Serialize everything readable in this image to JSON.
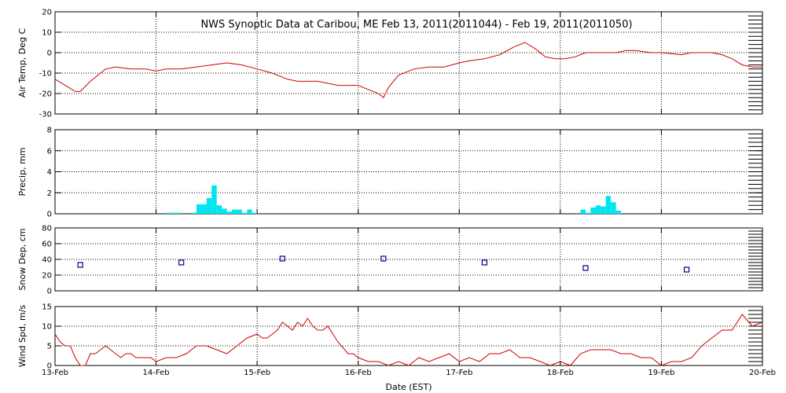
{
  "chart_data": {
    "type": "multi-panel",
    "title": "NWS Synoptic Data at Caribou, ME   Feb 13, 2011(2011044) - Feb 19, 2011(2011050)",
    "xlabel": "Date (EST)",
    "x_tick_labels": [
      "13-Feb",
      "14-Feb",
      "15-Feb",
      "16-Feb",
      "17-Feb",
      "18-Feb",
      "19-Feb",
      "20-Feb"
    ],
    "xlim": [
      0,
      7
    ],
    "x_unit": "days since 13-Feb 00:00",
    "grid": "dotted vertical at day boundaries",
    "panels": [
      {
        "type": "line",
        "ylabel": "Air Temp, Deg C",
        "ylim": [
          -30,
          20
        ],
        "yticks": [
          "20",
          "10",
          "0",
          "-10",
          "-20",
          "-30"
        ],
        "color": "#cc0000",
        "series": [
          {
            "name": "Air Temp",
            "x": [
              0.0,
              0.1,
              0.2,
              0.25,
              0.35,
              0.5,
              0.6,
              0.75,
              0.9,
              1.0,
              1.1,
              1.25,
              1.4,
              1.55,
              1.7,
              1.85,
              2.0,
              2.15,
              2.3,
              2.4,
              2.6,
              2.8,
              3.0,
              3.1,
              3.2,
              3.25,
              3.3,
              3.4,
              3.55,
              3.7,
              3.85,
              4.0,
              4.1,
              4.25,
              4.4,
              4.55,
              4.65,
              4.75,
              4.85,
              4.95,
              5.05,
              5.15,
              5.25,
              5.4,
              5.55,
              5.65,
              5.75,
              5.9,
              6.0,
              6.2,
              6.3,
              6.4,
              6.5,
              6.6,
              6.7,
              6.8,
              6.9,
              7.0
            ],
            "values": [
              -13,
              -16,
              -19,
              -19,
              -14,
              -8,
              -7,
              -8,
              -8,
              -9,
              -8,
              -8,
              -7,
              -6,
              -5,
              -6,
              -8,
              -10,
              -13,
              -14,
              -14,
              -16,
              -16,
              -18,
              -20,
              -22,
              -17,
              -11,
              -8,
              -7,
              -7,
              -5,
              -4,
              -3,
              -1,
              3,
              5,
              2,
              -2,
              -3,
              -3,
              -2,
              0,
              0,
              0,
              1,
              1,
              0,
              0,
              -1,
              0,
              0,
              0,
              -1,
              -3,
              -6,
              -7,
              -7
            ]
          }
        ]
      },
      {
        "type": "bar",
        "ylabel": "Precip, mm",
        "ylim": [
          0,
          8
        ],
        "yticks": [
          "8",
          "6",
          "4",
          "2",
          "0"
        ],
        "color": "#00e5ee",
        "series": [
          {
            "name": "Precip",
            "x": [
              1.1,
              1.15,
              1.2,
              1.35,
              1.4,
              1.45,
              1.5,
              1.55,
              1.6,
              1.65,
              1.7,
              1.75,
              1.8,
              1.85,
              1.9,
              1.95,
              5.2,
              5.25,
              5.3,
              5.35,
              5.4,
              5.45,
              5.5,
              5.55
            ],
            "values": [
              0.1,
              0.1,
              0.1,
              0.1,
              0.9,
              0.9,
              1.5,
              2.7,
              0.8,
              0.5,
              0.2,
              0.4,
              0.4,
              0.1,
              0.4,
              0.1,
              0.4,
              0.1,
              0.6,
              0.8,
              0.7,
              1.7,
              1.1,
              0.3
            ]
          }
        ]
      },
      {
        "type": "scatter",
        "ylabel": "Snow Dep, cm",
        "ylim": [
          0,
          80
        ],
        "yticks": [
          "80",
          "60",
          "40",
          "20",
          "0"
        ],
        "color": "#00008b",
        "series": [
          {
            "name": "Snow Depth",
            "x": [
              0.25,
              1.25,
              2.25,
              3.25,
              4.25,
              5.25,
              6.25
            ],
            "values": [
              33,
              36,
              41,
              41,
              36,
              29,
              27
            ]
          }
        ]
      },
      {
        "type": "line",
        "ylabel": "Wind Spd, m/s",
        "ylim": [
          0,
          15
        ],
        "yticks": [
          "15",
          "10",
          "5",
          "0"
        ],
        "color": "#cc0000",
        "series": [
          {
            "name": "Wind Speed",
            "x": [
              0.0,
              0.05,
              0.1,
              0.15,
              0.2,
              0.25,
              0.3,
              0.35,
              0.4,
              0.45,
              0.5,
              0.55,
              0.6,
              0.65,
              0.7,
              0.75,
              0.8,
              0.85,
              0.9,
              0.95,
              1.0,
              1.1,
              1.2,
              1.3,
              1.4,
              1.5,
              1.6,
              1.7,
              1.8,
              1.9,
              2.0,
              2.05,
              2.1,
              2.2,
              2.25,
              2.3,
              2.35,
              2.4,
              2.45,
              2.5,
              2.55,
              2.6,
              2.65,
              2.7,
              2.75,
              2.8,
              2.9,
              2.95,
              3.0,
              3.1,
              3.2,
              3.3,
              3.4,
              3.5,
              3.6,
              3.7,
              3.8,
              3.9,
              4.0,
              4.1,
              4.2,
              4.3,
              4.4,
              4.5,
              4.6,
              4.7,
              4.8,
              4.9,
              5.0,
              5.1,
              5.2,
              5.3,
              5.4,
              5.5,
              5.6,
              5.7,
              5.8,
              5.9,
              6.0,
              6.1,
              6.2,
              6.3,
              6.4,
              6.5,
              6.6,
              6.7,
              6.8,
              6.9,
              7.0
            ],
            "values": [
              8,
              6,
              5,
              5,
              2,
              0,
              0,
              3,
              3,
              4,
              5,
              4,
              3,
              2,
              3,
              3,
              2,
              2,
              2,
              2,
              1,
              2,
              2,
              3,
              5,
              5,
              4,
              3,
              5,
              7,
              8,
              7,
              7,
              9,
              11,
              10,
              9,
              11,
              10,
              12,
              10,
              9,
              9,
              10,
              8,
              6,
              3,
              3,
              2,
              1,
              1,
              0,
              1,
              0,
              2,
              1,
              2,
              3,
              1,
              2,
              1,
              3,
              3,
              4,
              2,
              2,
              1,
              0,
              1,
              0,
              3,
              4,
              4,
              4,
              3,
              3,
              2,
              2,
              0,
              1,
              1,
              2,
              5,
              7,
              9,
              9,
              13,
              10,
              11
            ]
          }
        ]
      }
    ]
  }
}
